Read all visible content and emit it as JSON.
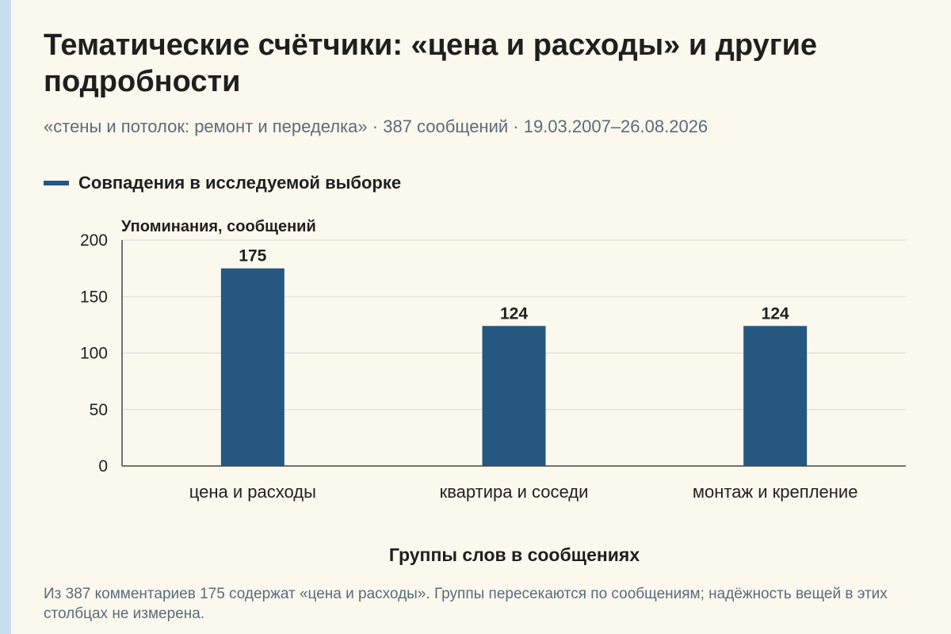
{
  "title": "Тематические счётчики: «цена и расходы» и другие подробности",
  "subtitle": "«стены и потолок: ремонт и переделка» · 387 сообщений · 19.03.2007–26.08.2026",
  "caption": "Из 387 комментариев 175 содержат «цена и расходы». Группы пересекаются по сообщениям; надёжность вещей в этих столбцах не измерена.",
  "colors": {
    "bar": "#255781",
    "grid": "#d9d9d9",
    "axis": "#444444"
  },
  "chart_data": {
    "type": "bar",
    "title": "Тематические счётчики: «цена и расходы» и другие подробности",
    "subtitle": "«стены и потолок: ремонт и переделка» · 387 сообщений · 19.03.2007–26.08.2026",
    "xlabel": "Группы слов в сообщениях",
    "ylabel": "Упоминания, сообщений",
    "categories": [
      "цена и расходы",
      "квартира и соседи",
      "монтаж и крепление"
    ],
    "series": [
      {
        "name": "Совпадения в исследуемой выборке",
        "values": [
          175,
          124,
          124
        ]
      }
    ],
    "ylim": [
      0,
      200
    ],
    "yticks": [
      0,
      50,
      100,
      150,
      200
    ],
    "grid": true,
    "legend": "top-left",
    "data_labels": true
  }
}
